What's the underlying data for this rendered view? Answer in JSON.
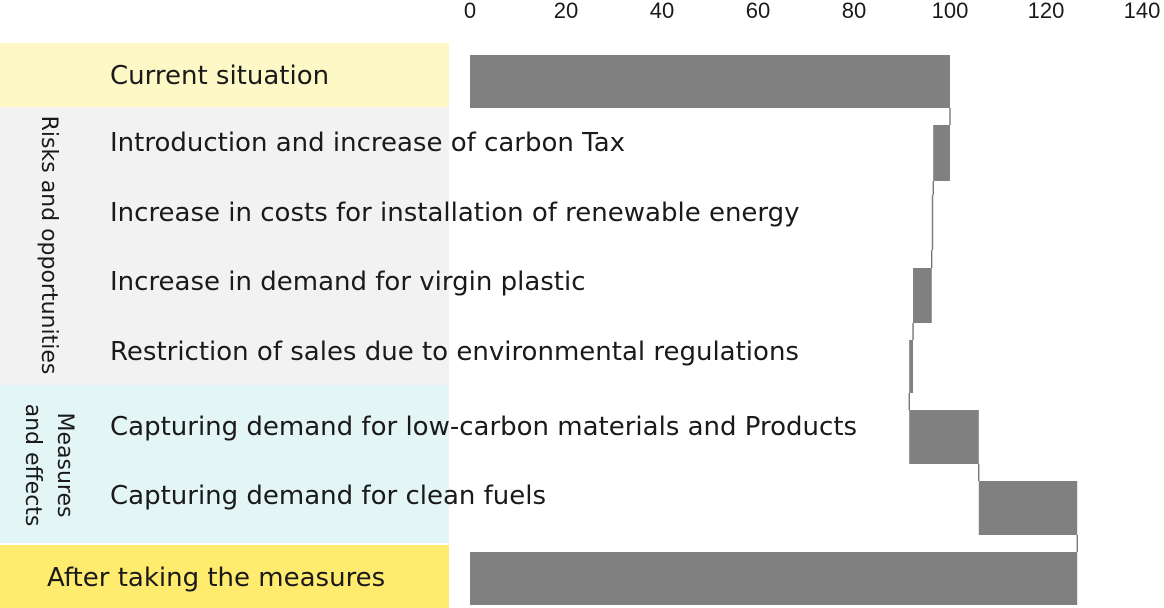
{
  "chart_data": {
    "type": "bar",
    "variant": "waterfall-horizontal",
    "xlim": [
      0,
      140
    ],
    "ticks": [
      0,
      20,
      40,
      60,
      80,
      100,
      120,
      140
    ],
    "bar_color": "#808080",
    "rows": [
      {
        "label": "Current situation",
        "start": 0,
        "end": 100
      },
      {
        "label": "Introduction and increase of carbon Tax",
        "start": 100,
        "end": 96.5
      },
      {
        "label": "Increase in costs for installation of renewable energy",
        "start": 96.5,
        "end": 96.2
      },
      {
        "label": "Increase in demand for virgin plastic",
        "start": 96.2,
        "end": 92.3
      },
      {
        "label": "Restriction of sales due to environmental regulations",
        "start": 92.3,
        "end": 91.5
      },
      {
        "label": "Capturing demand for low-carbon materials and Products",
        "start": 91.5,
        "end": 106
      },
      {
        "label": "Capturing demand for clean fuels",
        "start": 106,
        "end": 126.5
      },
      {
        "label": "After taking the measures",
        "start": 0,
        "end": 126.5
      }
    ],
    "groups": [
      {
        "label": "Risks and opportunities"
      },
      {
        "label": "Measures\nand effects"
      }
    ]
  }
}
